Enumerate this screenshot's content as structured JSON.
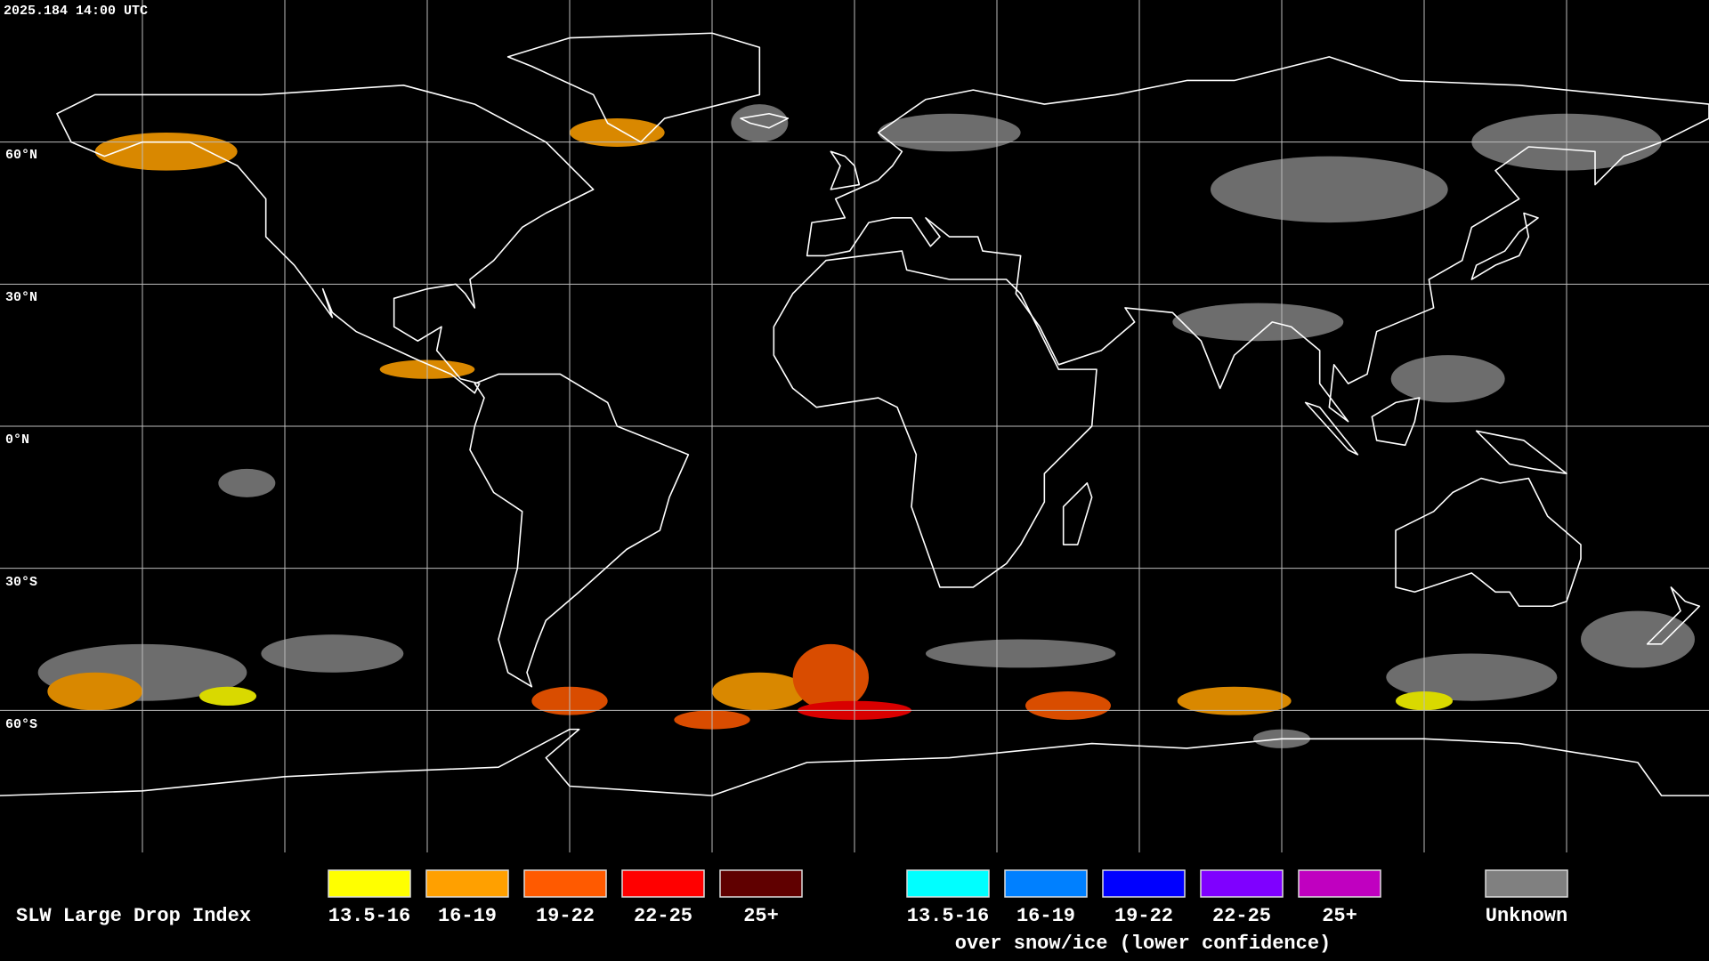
{
  "timestamp": "2025.184 14:00 UTC",
  "lat_labels": [
    "60°N",
    "30°N",
    "0°N",
    "30°S",
    "60°S"
  ],
  "legend": {
    "title": "SLW Large Drop Index",
    "items": [
      {
        "label": "13.5-16",
        "color": "#ffff00"
      },
      {
        "label": "16-19",
        "color": "#ffa000"
      },
      {
        "label": "19-22",
        "color": "#ff5a00"
      },
      {
        "label": "22-25",
        "color": "#ff0000"
      },
      {
        "label": "25+",
        "color": "#600000"
      }
    ],
    "snow_items": [
      {
        "label": "13.5-16",
        "color": "#00ffff"
      },
      {
        "label": "16-19",
        "color": "#0080ff"
      },
      {
        "label": "19-22",
        "color": "#0000ff"
      },
      {
        "label": "22-25",
        "color": "#7f00ff"
      },
      {
        "label": "25+",
        "color": "#c000c0"
      }
    ],
    "snow_caption": "over snow/ice (lower confidence)",
    "unknown": {
      "label": "Unknown",
      "color": "#808080"
    }
  }
}
